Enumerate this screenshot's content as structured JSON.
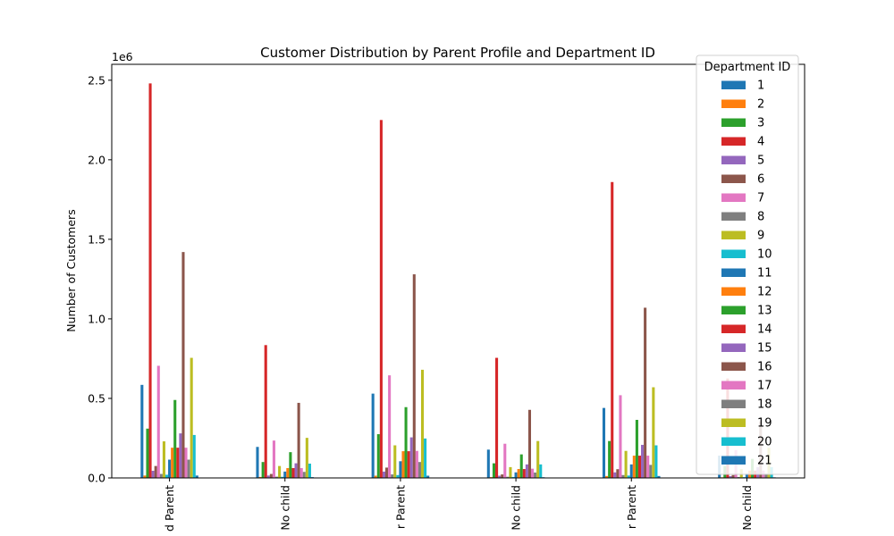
{
  "chart_data": {
    "type": "bar",
    "title": "Customer Distribution by Parent Profile and Department ID",
    "xlabel": "",
    "ylabel": "Number of Customers",
    "y_multiplier_label": "1e6",
    "ylim": [
      0,
      2600000
    ],
    "yticks": [
      0,
      500000,
      1000000,
      1500000,
      2000000,
      2500000
    ],
    "ytick_labels": [
      "0.0",
      "0.5",
      "1.0",
      "1.5",
      "2.0",
      "2.5"
    ],
    "categories": [
      "d Parent",
      "No child",
      "r Parent",
      "No child",
      "r Parent",
      "No child"
    ],
    "legend": {
      "title": "Department ID",
      "placement": "top-right"
    },
    "grid": false,
    "series": [
      {
        "name": "1",
        "color": "#1f77b4",
        "values": [
          585000,
          195000,
          530000,
          178000,
          440000,
          140000
        ]
      },
      {
        "name": "2",
        "color": "#ff7f0e",
        "values": [
          15000,
          6000,
          14000,
          5000,
          12000,
          4000
        ]
      },
      {
        "name": "3",
        "color": "#2ca02c",
        "values": [
          310000,
          100000,
          275000,
          92000,
          232000,
          75000
        ]
      },
      {
        "name": "4",
        "color": "#d62728",
        "values": [
          2480000,
          835000,
          2250000,
          755000,
          1860000,
          625000
        ]
      },
      {
        "name": "5",
        "color": "#9467bd",
        "values": [
          45000,
          15000,
          40000,
          14000,
          35000,
          11000
        ]
      },
      {
        "name": "6",
        "color": "#8c564b",
        "values": [
          75000,
          25000,
          65000,
          22000,
          55000,
          18000
        ]
      },
      {
        "name": "7",
        "color": "#e377c2",
        "values": [
          705000,
          235000,
          645000,
          215000,
          520000,
          175000
        ]
      },
      {
        "name": "8",
        "color": "#7f7f7f",
        "values": [
          25000,
          8000,
          22000,
          7500,
          18000,
          6000
        ]
      },
      {
        "name": "9",
        "color": "#bcbd22",
        "values": [
          230000,
          75000,
          205000,
          68000,
          170000,
          55000
        ]
      },
      {
        "name": "10",
        "color": "#17becf",
        "values": [
          20000,
          7000,
          18000,
          6000,
          15000,
          5000
        ]
      },
      {
        "name": "11",
        "color": "#1f77b4",
        "values": [
          115000,
          40000,
          105000,
          35000,
          85000,
          28000
        ]
      },
      {
        "name": "12",
        "color": "#ff7f0e",
        "values": [
          190000,
          62000,
          168000,
          56000,
          140000,
          46000
        ]
      },
      {
        "name": "13",
        "color": "#2ca02c",
        "values": [
          490000,
          162000,
          445000,
          148000,
          365000,
          120000
        ]
      },
      {
        "name": "14",
        "color": "#d62728",
        "values": [
          190000,
          62000,
          168000,
          56000,
          140000,
          46000
        ]
      },
      {
        "name": "15",
        "color": "#9467bd",
        "values": [
          280000,
          92000,
          255000,
          85000,
          208000,
          68000
        ]
      },
      {
        "name": "16",
        "color": "#8c564b",
        "values": [
          1420000,
          472000,
          1280000,
          428000,
          1070000,
          355000
        ]
      },
      {
        "name": "17",
        "color": "#e377c2",
        "values": [
          190000,
          62000,
          170000,
          58000,
          140000,
          46000
        ]
      },
      {
        "name": "18",
        "color": "#7f7f7f",
        "values": [
          115000,
          38000,
          100000,
          34000,
          82000,
          27000
        ]
      },
      {
        "name": "19",
        "color": "#bcbd22",
        "values": [
          755000,
          252000,
          680000,
          232000,
          570000,
          190000
        ]
      },
      {
        "name": "20",
        "color": "#17becf",
        "values": [
          270000,
          90000,
          248000,
          85000,
          205000,
          68000
        ]
      },
      {
        "name": "21",
        "color": "#1f77b4",
        "values": [
          15000,
          5000,
          14000,
          4500,
          12000,
          4000
        ]
      }
    ]
  }
}
